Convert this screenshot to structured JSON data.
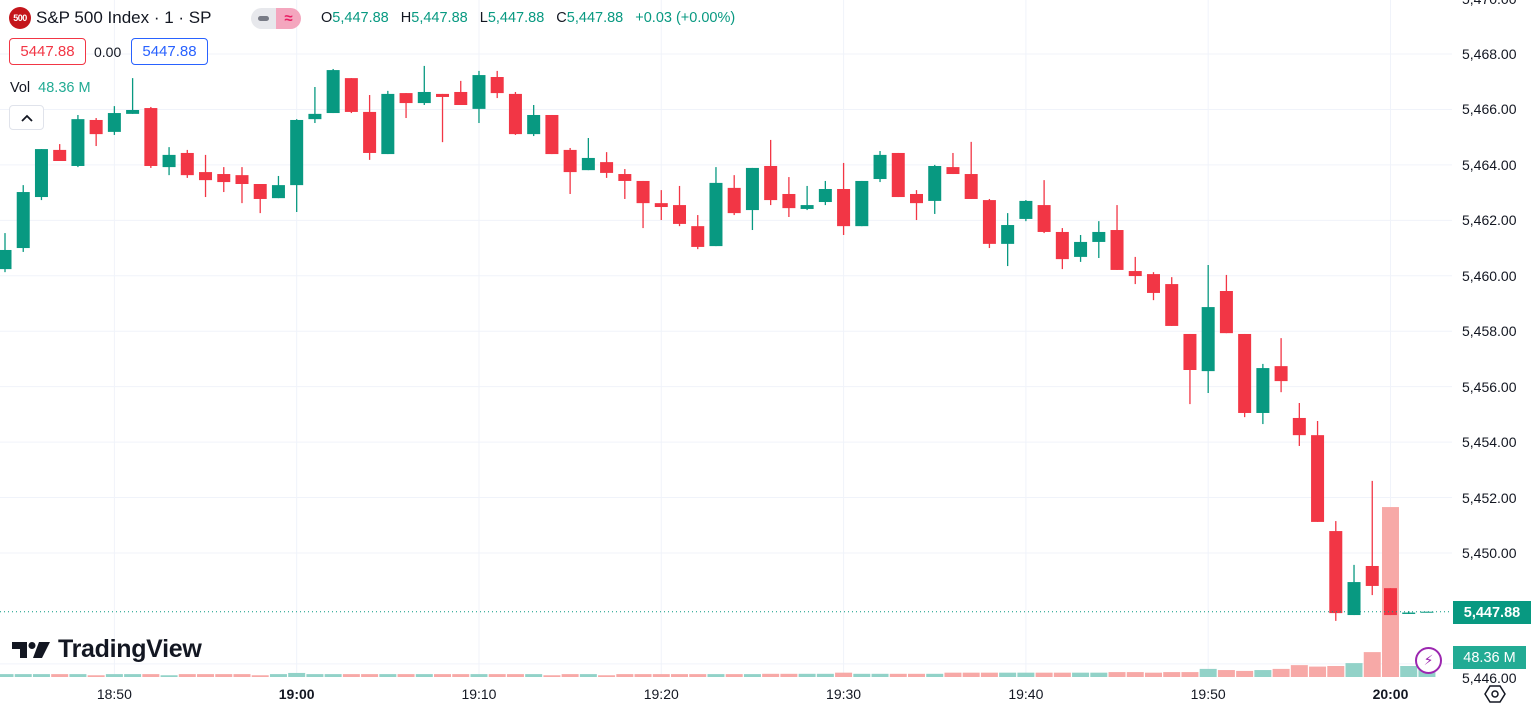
{
  "header": {
    "logo_text": "500",
    "title": "S&P 500 Index · 1 · SP",
    "ohlc": {
      "o_label": "O",
      "o": "5,447.88",
      "h_label": "H",
      "h": "5,447.88",
      "l_label": "L",
      "l": "5,447.88",
      "c_label": "C",
      "c": "5,447.88",
      "change": "+0.03 (+0.00%)"
    }
  },
  "trade": {
    "sell": "5447.88",
    "spread": "0.00",
    "buy": "5447.88"
  },
  "volume_legend": {
    "label": "Vol",
    "value": "48.36 M"
  },
  "price_axis": {
    "ticks": [
      "5,470.00",
      "5,468.00",
      "5,466.00",
      "5,464.00",
      "5,462.00",
      "5,460.00",
      "5,458.00",
      "5,456.00",
      "5,454.00",
      "5,452.00",
      "5,450.00",
      "5,446.00"
    ],
    "last_price": "5,447.88",
    "last_volume": "48.36 M"
  },
  "time_axis": {
    "ticks": [
      "18:50",
      "19:00",
      "19:10",
      "19:20",
      "19:30",
      "19:40",
      "19:50",
      "20:00"
    ],
    "bold_ticks": [
      "19:00",
      "20:00"
    ]
  },
  "branding": {
    "logo": "TradingView"
  },
  "icons": {
    "collapse": "chevron-up-icon",
    "pill_left": "minus-icon",
    "pill_right": "approx-icon",
    "bolt": "lightning-icon",
    "settings": "settings-hexagon-icon"
  },
  "colors": {
    "up": "#089981",
    "down": "#F23645",
    "volume_up": "#92D2C8",
    "volume_down": "#F7A9A7",
    "sell_border": "#F23645",
    "buy_border": "#2962FF",
    "volume_label": "#22AB94"
  },
  "chart_data": {
    "type": "candlestick",
    "symbol": "S&P 500 Index · 1 · SP",
    "interval_minutes": 1,
    "ylim": [
      5445.6,
      5470.0
    ],
    "y_ticks": [
      5470,
      5468,
      5466,
      5464,
      5462,
      5460,
      5458,
      5456,
      5454,
      5452,
      5450,
      5446
    ],
    "x_ticks": [
      "18:50",
      "19:00",
      "19:10",
      "19:20",
      "19:30",
      "19:40",
      "19:50",
      "20:00"
    ],
    "last_price": 5447.88,
    "grid": true,
    "volume_unit": "M",
    "columns": [
      "time",
      "open",
      "high",
      "low",
      "close",
      "volume"
    ],
    "rows": [
      [
        "18:44",
        5460.24,
        5461.54,
        5460.13,
        5460.93,
        10
      ],
      [
        "18:45",
        5461.0,
        5463.27,
        5460.86,
        5463.02,
        10
      ],
      [
        "18:46",
        5462.84,
        5464.57,
        5462.73,
        5464.57,
        10
      ],
      [
        "18:47",
        5464.54,
        5464.75,
        5464.14,
        5464.14,
        10
      ],
      [
        "18:48",
        5463.96,
        5465.8,
        5463.92,
        5465.65,
        10
      ],
      [
        "18:49",
        5465.62,
        5465.69,
        5464.68,
        5465.11,
        6
      ],
      [
        "18:50",
        5465.19,
        5466.12,
        5465.08,
        5465.87,
        10
      ],
      [
        "18:51",
        5465.84,
        5467.13,
        5465.84,
        5465.98,
        10
      ],
      [
        "18:52",
        5466.05,
        5466.09,
        5463.89,
        5463.96,
        10
      ],
      [
        "18:53",
        5463.92,
        5464.64,
        5463.63,
        5464.36,
        6
      ],
      [
        "18:54",
        5464.43,
        5464.54,
        5463.53,
        5463.63,
        10
      ],
      [
        "18:55",
        5463.74,
        5464.36,
        5462.84,
        5463.45,
        10
      ],
      [
        "18:56",
        5463.67,
        5463.92,
        5463.02,
        5463.38,
        10
      ],
      [
        "18:57",
        5463.63,
        5463.92,
        5462.62,
        5463.31,
        10
      ],
      [
        "18:58",
        5463.31,
        5463.31,
        5462.26,
        5462.77,
        6
      ],
      [
        "18:59",
        5462.8,
        5463.6,
        5462.8,
        5463.27,
        10
      ],
      [
        "19:00",
        5463.27,
        5465.65,
        5462.3,
        5465.62,
        14
      ],
      [
        "19:01",
        5465.65,
        5466.81,
        5465.51,
        5465.84,
        10
      ],
      [
        "19:02",
        5465.87,
        5467.46,
        5465.87,
        5467.42,
        10
      ],
      [
        "19:03",
        5467.13,
        5467.13,
        5465.87,
        5465.91,
        10
      ],
      [
        "19:04",
        5465.91,
        5466.52,
        5464.18,
        5464.43,
        10
      ],
      [
        "19:05",
        5464.39,
        5466.67,
        5464.39,
        5466.56,
        10
      ],
      [
        "19:06",
        5466.59,
        5466.59,
        5465.69,
        5466.23,
        10
      ],
      [
        "19:07",
        5466.23,
        5467.57,
        5466.16,
        5466.63,
        10
      ],
      [
        "19:08",
        5466.56,
        5466.56,
        5464.82,
        5466.45,
        10
      ],
      [
        "19:09",
        5466.63,
        5467.03,
        5466.16,
        5466.16,
        10
      ],
      [
        "19:10",
        5466.02,
        5467.39,
        5465.51,
        5467.24,
        10
      ],
      [
        "19:11",
        5467.17,
        5467.39,
        5466.41,
        5466.59,
        10
      ],
      [
        "19:12",
        5466.56,
        5466.63,
        5465.08,
        5465.11,
        10
      ],
      [
        "19:13",
        5465.11,
        5466.16,
        5465.04,
        5465.8,
        10
      ],
      [
        "19:14",
        5465.8,
        5465.8,
        5464.39,
        5464.39,
        6
      ],
      [
        "19:15",
        5464.54,
        5464.61,
        5462.95,
        5463.74,
        10
      ],
      [
        "19:16",
        5463.81,
        5464.97,
        5463.81,
        5464.25,
        10
      ],
      [
        "19:17",
        5464.1,
        5464.46,
        5463.53,
        5463.71,
        6
      ],
      [
        "19:18",
        5463.67,
        5463.85,
        5462.77,
        5463.42,
        10
      ],
      [
        "19:19",
        5463.42,
        5463.42,
        5461.72,
        5462.62,
        10
      ],
      [
        "19:20",
        5462.62,
        5463.09,
        5462.01,
        5462.48,
        10
      ],
      [
        "19:21",
        5462.55,
        5463.24,
        5461.79,
        5461.87,
        10
      ],
      [
        "19:22",
        5461.79,
        5462.19,
        5460.96,
        5461.04,
        10
      ],
      [
        "19:23",
        5461.07,
        5463.92,
        5461.07,
        5463.35,
        10
      ],
      [
        "19:24",
        5463.17,
        5463.63,
        5462.19,
        5462.26,
        10
      ],
      [
        "19:25",
        5462.37,
        5463.89,
        5461.65,
        5463.89,
        10
      ],
      [
        "19:26",
        5463.96,
        5464.9,
        5462.55,
        5462.73,
        11
      ],
      [
        "19:27",
        5462.95,
        5463.56,
        5462.12,
        5462.44,
        11
      ],
      [
        "19:28",
        5462.41,
        5463.24,
        5462.37,
        5462.55,
        11
      ],
      [
        "19:29",
        5462.66,
        5463.42,
        5462.55,
        5463.13,
        11
      ],
      [
        "19:30",
        5463.13,
        5464.07,
        5461.47,
        5461.79,
        15
      ],
      [
        "19:31",
        5461.79,
        5463.42,
        5461.79,
        5463.42,
        11
      ],
      [
        "19:32",
        5463.49,
        5464.5,
        5463.38,
        5464.36,
        11
      ],
      [
        "19:33",
        5464.43,
        5464.43,
        5462.84,
        5462.84,
        11
      ],
      [
        "19:34",
        5462.95,
        5463.09,
        5462.01,
        5462.62,
        11
      ],
      [
        "19:35",
        5462.7,
        5464.0,
        5462.23,
        5463.96,
        11
      ],
      [
        "19:36",
        5463.92,
        5464.43,
        5463.67,
        5463.67,
        15
      ],
      [
        "19:37",
        5463.67,
        5464.83,
        5462.77,
        5462.77,
        15
      ],
      [
        "19:38",
        5462.73,
        5462.77,
        5461.0,
        5461.15,
        15
      ],
      [
        "19:39",
        5461.15,
        5462.26,
        5460.35,
        5461.83,
        15
      ],
      [
        "19:40",
        5462.05,
        5462.73,
        5461.97,
        5462.7,
        15
      ],
      [
        "19:41",
        5462.55,
        5463.45,
        5461.54,
        5461.58,
        15
      ],
      [
        "19:42",
        5461.58,
        5461.72,
        5460.24,
        5460.6,
        15
      ],
      [
        "19:43",
        5460.68,
        5461.47,
        5460.5,
        5461.22,
        15
      ],
      [
        "19:44",
        5461.22,
        5461.97,
        5460.64,
        5461.58,
        15
      ],
      [
        "19:45",
        5461.65,
        5462.55,
        5460.21,
        5460.21,
        17
      ],
      [
        "19:46",
        5460.17,
        5460.68,
        5459.7,
        5459.99,
        17
      ],
      [
        "19:47",
        5460.06,
        5460.13,
        5459.12,
        5459.38,
        15
      ],
      [
        "19:48",
        5459.7,
        5459.95,
        5458.19,
        5458.19,
        17
      ],
      [
        "19:49",
        5457.9,
        5457.9,
        5455.37,
        5456.6,
        17
      ],
      [
        "19:50",
        5456.56,
        5460.39,
        5455.77,
        5458.87,
        28
      ],
      [
        "19:51",
        5459.45,
        5460.03,
        5457.93,
        5457.93,
        24
      ],
      [
        "19:52",
        5457.9,
        5457.9,
        5454.9,
        5455.05,
        21
      ],
      [
        "19:53",
        5455.05,
        5456.82,
        5454.65,
        5456.67,
        24
      ],
      [
        "19:54",
        5456.74,
        5457.75,
        5455.8,
        5456.2,
        28
      ],
      [
        "19:55",
        5454.87,
        5455.41,
        5453.86,
        5454.25,
        41
      ],
      [
        "19:56",
        5454.25,
        5454.76,
        5451.12,
        5451.12,
        36
      ],
      [
        "19:57",
        5450.79,
        5451.15,
        5447.55,
        5447.83,
        38
      ],
      [
        "19:58",
        5447.76,
        5449.57,
        5447.76,
        5448.95,
        48
      ],
      [
        "19:59",
        5449.53,
        5452.6,
        5448.48,
        5448.81,
        86
      ],
      [
        "20:00",
        5448.73,
        5448.73,
        5447.76,
        5447.76,
        587
      ],
      [
        "20:01",
        5447.8,
        5447.9,
        5447.8,
        5447.85,
        38
      ],
      [
        "20:02",
        5447.85,
        5447.88,
        5447.85,
        5447.88,
        48.36
      ]
    ]
  }
}
